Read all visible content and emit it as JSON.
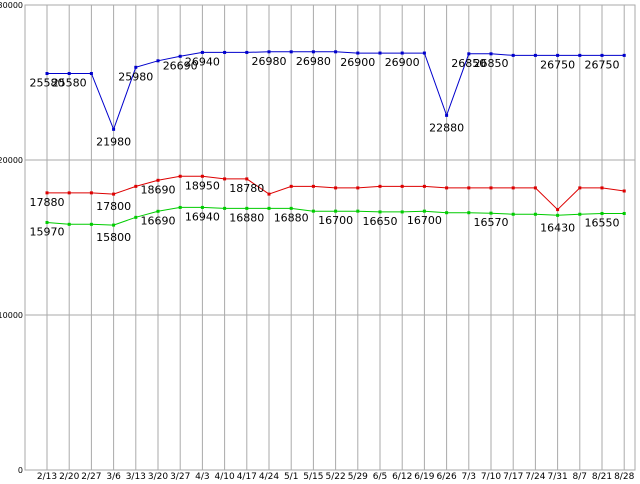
{
  "chart_data": {
    "type": "line",
    "title": "",
    "xlabel": "",
    "ylabel": "",
    "ylim": [
      0,
      30000
    ],
    "y_ticks": [
      0,
      10000,
      20000,
      30000
    ],
    "y_tick_labels": [
      "0",
      "10000",
      "20000",
      "30000"
    ],
    "grid": true,
    "categories": [
      "2/13",
      "2/20",
      "2/27",
      "3/6",
      "3/13",
      "3/20",
      "3/27",
      "4/3",
      "4/10",
      "4/17",
      "4/24",
      "5/1",
      "5/15",
      "5/22",
      "5/29",
      "6/5",
      "6/12",
      "6/19",
      "6/26",
      "7/3",
      "7/10",
      "7/17",
      "7/24",
      "7/31",
      "8/7",
      "8/21",
      "8/28"
    ],
    "series": [
      {
        "color": "#0000cc",
        "values": [
          25580,
          25580,
          25580,
          21980,
          25980,
          26400,
          26690,
          26940,
          26940,
          26940,
          26980,
          26980,
          26980,
          26980,
          26900,
          26900,
          26900,
          26900,
          22880,
          26850,
          26850,
          26750,
          26750,
          26750,
          26750,
          26750,
          26750
        ],
        "labeled_points": [
          0,
          1,
          3,
          4,
          6,
          7,
          10,
          12,
          14,
          16,
          18,
          19,
          20,
          23,
          25
        ]
      },
      {
        "color": "#dd0000",
        "values": [
          17880,
          17880,
          17880,
          17800,
          18300,
          18690,
          18950,
          18950,
          18780,
          18780,
          17800,
          18300,
          18300,
          18200,
          18200,
          18300,
          18300,
          18300,
          18200,
          18200,
          18200,
          18200,
          18200,
          16800,
          18200,
          18200,
          18000
        ],
        "labeled_points": [
          0,
          3,
          5,
          7,
          9
        ]
      },
      {
        "color": "#00cc00",
        "values": [
          15970,
          15850,
          15850,
          15800,
          16300,
          16690,
          16940,
          16940,
          16880,
          16880,
          16880,
          16880,
          16700,
          16700,
          16700,
          16650,
          16650,
          16700,
          16600,
          16600,
          16570,
          16500,
          16500,
          16430,
          16500,
          16550,
          16550
        ],
        "labeled_points": [
          0,
          3,
          5,
          7,
          9,
          11,
          13,
          15,
          17,
          20,
          23,
          25
        ]
      }
    ]
  }
}
